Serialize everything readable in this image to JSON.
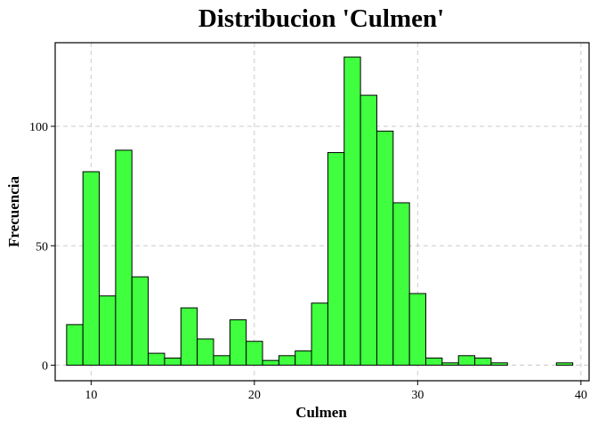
{
  "chart_data": {
    "type": "bar",
    "title": "Distribucion 'Culmen'",
    "xlabel": "Culmen",
    "ylabel": "Frecuencia",
    "xlim": [
      7.8,
      40.5
    ],
    "ylim": [
      -6.5,
      135
    ],
    "x_ticks": [
      10,
      20,
      30,
      40
    ],
    "y_ticks": [
      0,
      50,
      100
    ],
    "grid": true,
    "bar_fill": "#3fff3f",
    "bar_stroke": "#000000",
    "bin_width": 1,
    "bins": [
      {
        "start": 8.5,
        "end": 9.5,
        "count": 17
      },
      {
        "start": 9.5,
        "end": 10.5,
        "count": 81
      },
      {
        "start": 10.5,
        "end": 11.5,
        "count": 29
      },
      {
        "start": 11.5,
        "end": 12.5,
        "count": 90
      },
      {
        "start": 12.5,
        "end": 13.5,
        "count": 37
      },
      {
        "start": 13.5,
        "end": 14.5,
        "count": 5
      },
      {
        "start": 14.5,
        "end": 15.5,
        "count": 3
      },
      {
        "start": 15.5,
        "end": 16.5,
        "count": 24
      },
      {
        "start": 16.5,
        "end": 17.5,
        "count": 11
      },
      {
        "start": 17.5,
        "end": 18.5,
        "count": 4
      },
      {
        "start": 18.5,
        "end": 19.5,
        "count": 19
      },
      {
        "start": 19.5,
        "end": 20.5,
        "count": 10
      },
      {
        "start": 20.5,
        "end": 21.5,
        "count": 2
      },
      {
        "start": 21.5,
        "end": 22.5,
        "count": 4
      },
      {
        "start": 22.5,
        "end": 23.5,
        "count": 6
      },
      {
        "start": 23.5,
        "end": 24.5,
        "count": 26
      },
      {
        "start": 24.5,
        "end": 25.5,
        "count": 89
      },
      {
        "start": 25.5,
        "end": 26.5,
        "count": 129
      },
      {
        "start": 26.5,
        "end": 27.5,
        "count": 113
      },
      {
        "start": 27.5,
        "end": 28.5,
        "count": 98
      },
      {
        "start": 28.5,
        "end": 29.5,
        "count": 68
      },
      {
        "start": 29.5,
        "end": 30.5,
        "count": 30
      },
      {
        "start": 30.5,
        "end": 31.5,
        "count": 3
      },
      {
        "start": 31.5,
        "end": 32.5,
        "count": 1
      },
      {
        "start": 32.5,
        "end": 33.5,
        "count": 4
      },
      {
        "start": 33.5,
        "end": 34.5,
        "count": 3
      },
      {
        "start": 34.5,
        "end": 35.5,
        "count": 1
      },
      {
        "start": 35.5,
        "end": 36.5,
        "count": 0
      },
      {
        "start": 36.5,
        "end": 37.5,
        "count": 0
      },
      {
        "start": 37.5,
        "end": 38.5,
        "count": 0
      },
      {
        "start": 38.5,
        "end": 39.5,
        "count": 1
      }
    ]
  }
}
